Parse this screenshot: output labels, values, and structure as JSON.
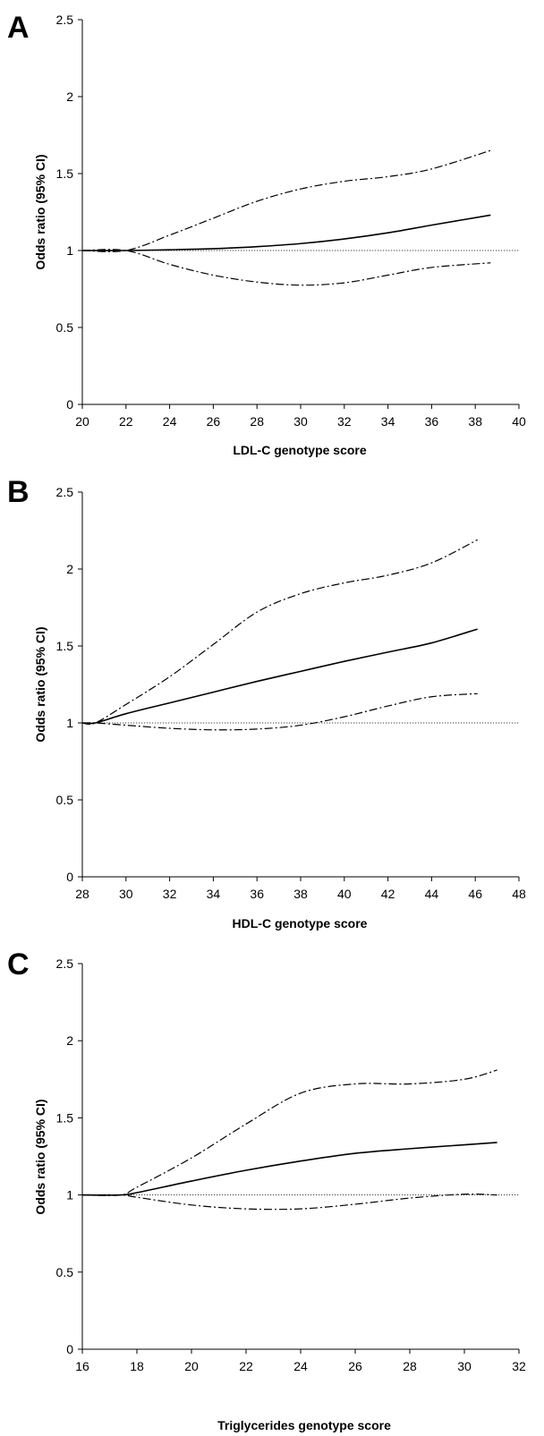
{
  "chart_data": [
    {
      "type": "line",
      "panel_label": "A",
      "xlabel": "LDL-C genotype score",
      "ylabel": "Odds ratio (95% CI)",
      "xlim": [
        20,
        40
      ],
      "ylim": [
        0,
        2.5
      ],
      "x_ticks": [
        "20",
        "22",
        "24",
        "26",
        "28",
        "30",
        "32",
        "34",
        "36",
        "38",
        "40"
      ],
      "y_ticks": [
        "0",
        "0.5",
        "1",
        "1.5",
        "2",
        "2.5"
      ],
      "reference_line": 1,
      "series": [
        {
          "role": "odds_ratio",
          "style": "solid",
          "x": [
            20,
            22,
            24,
            26,
            28,
            30,
            32,
            34,
            36,
            38.7
          ],
          "y": [
            1,
            1,
            1.005,
            1.012,
            1.025,
            1.045,
            1.075,
            1.115,
            1.165,
            1.23
          ]
        },
        {
          "role": "upper_ci",
          "style": "dash-dot",
          "x": [
            20,
            22,
            24,
            26,
            28,
            30,
            32,
            34,
            36,
            38.7
          ],
          "y": [
            1,
            1,
            1.1,
            1.21,
            1.32,
            1.4,
            1.45,
            1.48,
            1.53,
            1.65
          ]
        },
        {
          "role": "lower_ci",
          "style": "dash-dot",
          "x": [
            20,
            22,
            24,
            26,
            28,
            30,
            32,
            34,
            36,
            38.7
          ],
          "y": [
            1,
            1,
            0.91,
            0.84,
            0.795,
            0.775,
            0.79,
            0.84,
            0.89,
            0.92
          ]
        }
      ]
    },
    {
      "type": "line",
      "panel_label": "B",
      "xlabel": "HDL-C genotype score",
      "ylabel": "Odds ratio (95% CI)",
      "xlim": [
        28,
        48
      ],
      "ylim": [
        0,
        2.5
      ],
      "x_ticks": [
        "28",
        "30",
        "32",
        "34",
        "36",
        "38",
        "40",
        "42",
        "44",
        "46",
        "48"
      ],
      "y_ticks": [
        "0",
        "0.5",
        "1",
        "1.5",
        "2",
        "2.5"
      ],
      "reference_line": 1,
      "series": [
        {
          "role": "odds_ratio",
          "style": "solid",
          "x": [
            28,
            28.6,
            30,
            32,
            34,
            36,
            38,
            40,
            42,
            44,
            46.1
          ],
          "y": [
            1,
            1,
            1.06,
            1.13,
            1.2,
            1.27,
            1.335,
            1.4,
            1.46,
            1.52,
            1.61
          ]
        },
        {
          "role": "upper_ci",
          "style": "dash-dot",
          "x": [
            28,
            28.6,
            30,
            32,
            34,
            36,
            38,
            40,
            42,
            44,
            46.1
          ],
          "y": [
            1,
            1,
            1.12,
            1.3,
            1.51,
            1.72,
            1.84,
            1.91,
            1.96,
            2.04,
            2.19
          ]
        },
        {
          "role": "lower_ci",
          "style": "dash-dot",
          "x": [
            28,
            28.6,
            30,
            32,
            34,
            36,
            38,
            40,
            42,
            44,
            46.1
          ],
          "y": [
            1,
            1,
            0.985,
            0.965,
            0.955,
            0.96,
            0.985,
            1.04,
            1.11,
            1.17,
            1.19
          ]
        }
      ]
    },
    {
      "type": "line",
      "panel_label": "C",
      "xlabel": "Triglycerides genotype score",
      "ylabel": "Odds ratio (95% CI)",
      "xlim": [
        16,
        32
      ],
      "ylim": [
        0,
        2.5
      ],
      "x_ticks": [
        "16",
        "18",
        "20",
        "22",
        "24",
        "26",
        "28",
        "30",
        "32"
      ],
      "y_ticks": [
        "0",
        "0.5",
        "1",
        "1.5",
        "2",
        "2.5"
      ],
      "reference_line": 1,
      "series": [
        {
          "role": "odds_ratio",
          "style": "solid",
          "x": [
            16,
            17.4,
            18,
            20,
            22,
            24,
            26,
            28,
            30,
            31.2
          ],
          "y": [
            1,
            1,
            1.015,
            1.09,
            1.16,
            1.22,
            1.27,
            1.3,
            1.325,
            1.34
          ]
        },
        {
          "role": "upper_ci",
          "style": "dash-dot",
          "x": [
            16,
            17.4,
            18,
            20,
            22,
            24,
            26,
            28,
            30,
            31.2
          ],
          "y": [
            1,
            1,
            1.05,
            1.24,
            1.46,
            1.66,
            1.72,
            1.72,
            1.75,
            1.81
          ]
        },
        {
          "role": "lower_ci",
          "style": "dash-dot",
          "x": [
            16,
            17.4,
            18,
            20,
            22,
            24,
            26,
            28,
            30,
            31.2
          ],
          "y": [
            1,
            1,
            0.985,
            0.935,
            0.91,
            0.91,
            0.94,
            0.98,
            1.005,
            1.0
          ]
        }
      ]
    }
  ]
}
